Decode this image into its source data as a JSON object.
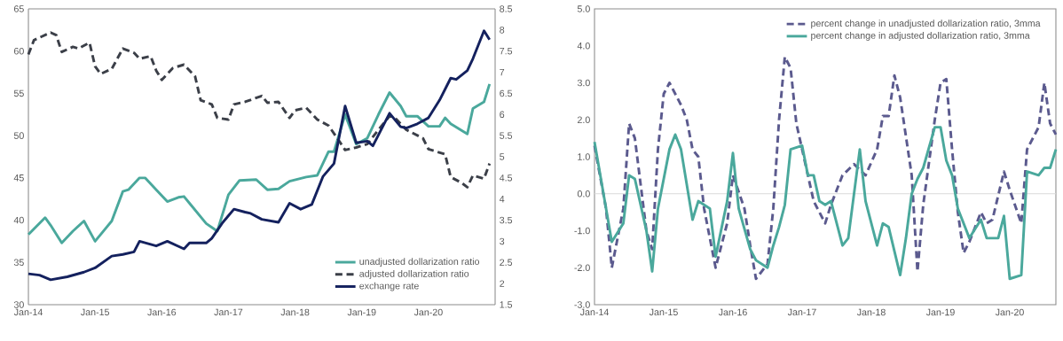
{
  "chart_data": [
    {
      "type": "line",
      "xlim": [
        "2014-01",
        "2021-01"
      ],
      "ylim": [
        30,
        65
      ],
      "yticks": [
        30,
        35,
        40,
        45,
        50,
        55,
        60,
        65
      ],
      "y2lim": [
        1.5,
        8.5
      ],
      "y2ticks": [
        1.5,
        2,
        2.5,
        3,
        3.5,
        4,
        4.5,
        5,
        5.5,
        6,
        6.5,
        7,
        7.5,
        8,
        8.5
      ],
      "legend": "bottom right",
      "xticks": [
        {
          "value": "2014-01",
          "label": "Jan-14"
        },
        {
          "value": "2015-01",
          "label": "Jan-15"
        },
        {
          "value": "2016-01",
          "label": "Jan-16"
        },
        {
          "value": "2017-01",
          "label": "Jan-17"
        },
        {
          "value": "2018-01",
          "label": "Jan-18"
        },
        {
          "value": "2019-01",
          "label": "Jan-19"
        },
        {
          "value": "2020-01",
          "label": "Jan-20"
        }
      ],
      "series": [
        {
          "name": "unadjusted dollarization ratio",
          "color": "#4aa89c",
          "line_style": "solid",
          "x": [
            "2014-01",
            "2014-04",
            "2014-05",
            "2014-07",
            "2014-09",
            "2014-11",
            "2015-01",
            "2015-04",
            "2015-06",
            "2015-07",
            "2015-09",
            "2015-10",
            "2015-12",
            "2016-02",
            "2016-04",
            "2016-05",
            "2016-06",
            "2016-09",
            "2016-11",
            "2017-01",
            "2017-03",
            "2017-06",
            "2017-08",
            "2017-10",
            "2017-12",
            "2018-03",
            "2018-05",
            "2018-07",
            "2018-08",
            "2018-10",
            "2018-12",
            "2019-02",
            "2019-04",
            "2019-06",
            "2019-08",
            "2019-09",
            "2019-11",
            "2020-01",
            "2020-03",
            "2020-04",
            "2020-05",
            "2020-08",
            "2020-09",
            "2020-11",
            "2020-12"
          ],
          "values": [
            38.3,
            40.3,
            39.4,
            37.3,
            38.7,
            39.9,
            37.5,
            39.9,
            43.4,
            43.6,
            45.0,
            45.0,
            43.6,
            42.2,
            42.7,
            42.8,
            42.0,
            39.6,
            38.7,
            43.0,
            44.7,
            44.8,
            43.6,
            43.7,
            44.6,
            45.1,
            45.3,
            48.1,
            48.1,
            52.5,
            49.0,
            49.7,
            52.5,
            55.1,
            53.5,
            52.3,
            52.3,
            51.1,
            51.1,
            52.1,
            51.4,
            50.2,
            53.2,
            54.0,
            56.1
          ]
        },
        {
          "name": "adjusted dollarization ratio",
          "color": "#3b3f48",
          "line_style": "dashed",
          "x": [
            "2014-01",
            "2014-02",
            "2014-05",
            "2014-06",
            "2014-07",
            "2014-09",
            "2014-10",
            "2014-12",
            "2015-01",
            "2015-02",
            "2015-04",
            "2015-06",
            "2015-08",
            "2015-09",
            "2015-11",
            "2015-12",
            "2016-01",
            "2016-03",
            "2016-05",
            "2016-07",
            "2016-08",
            "2016-10",
            "2016-11",
            "2017-01",
            "2017-02",
            "2017-04",
            "2017-07",
            "2017-08",
            "2017-10",
            "2017-12",
            "2018-01",
            "2018-03",
            "2018-05",
            "2018-07",
            "2018-09",
            "2018-10",
            "2018-12",
            "2019-02",
            "2019-04",
            "2019-06",
            "2019-07",
            "2019-09",
            "2019-12",
            "2020-01",
            "2020-04",
            "2020-05",
            "2020-07",
            "2020-08",
            "2020-09",
            "2020-11",
            "2020-12"
          ],
          "values": [
            59.6,
            61.3,
            62.2,
            61.9,
            59.9,
            60.5,
            60.3,
            61.0,
            58.2,
            57.3,
            57.9,
            60.3,
            59.8,
            59.1,
            59.4,
            57.7,
            56.6,
            58.0,
            58.4,
            57.0,
            54.2,
            53.7,
            52.1,
            51.9,
            53.7,
            54.0,
            54.7,
            53.9,
            54.0,
            52.1,
            53.0,
            53.3,
            51.9,
            51.2,
            49.3,
            48.3,
            48.6,
            49.0,
            50.7,
            52.3,
            52.1,
            50.7,
            49.7,
            48.4,
            47.8,
            45.1,
            44.4,
            43.9,
            45.3,
            44.9,
            46.7
          ]
        },
        {
          "name": "exchange rate",
          "color": "#14215e",
          "line_style": "solid",
          "axis": "y2",
          "x": [
            "2014-01",
            "2014-03",
            "2014-05",
            "2014-08",
            "2014-11",
            "2015-01",
            "2015-04",
            "2015-06",
            "2015-08",
            "2015-09",
            "2015-12",
            "2016-02",
            "2016-05",
            "2016-06",
            "2016-09",
            "2016-10",
            "2016-12",
            "2017-02",
            "2017-04",
            "2017-05",
            "2017-07",
            "2017-10",
            "2017-12",
            "2018-02",
            "2018-04",
            "2018-06",
            "2018-08",
            "2018-10",
            "2018-12",
            "2019-02",
            "2019-03",
            "2019-06",
            "2019-08",
            "2019-09",
            "2019-11",
            "2020-01",
            "2020-03",
            "2020-05",
            "2020-06",
            "2020-08",
            "2020-09",
            "2020-11",
            "2020-12"
          ],
          "values": [
            2.23,
            2.2,
            2.09,
            2.16,
            2.27,
            2.37,
            2.65,
            2.69,
            2.75,
            3.0,
            2.89,
            3.0,
            2.82,
            2.96,
            2.96,
            3.07,
            3.45,
            3.76,
            3.69,
            3.66,
            3.52,
            3.45,
            3.9,
            3.76,
            3.87,
            4.53,
            4.84,
            6.2,
            5.33,
            5.37,
            5.26,
            6.03,
            5.71,
            5.68,
            5.78,
            5.92,
            6.34,
            6.86,
            6.83,
            7.04,
            7.32,
            7.98,
            7.77
          ]
        }
      ]
    },
    {
      "type": "line",
      "xlim": [
        "2014-01",
        "2020-09"
      ],
      "ylim": [
        -3,
        5
      ],
      "legend": "top right",
      "yticks": [
        {
          "value": -3,
          "label": "-3.0"
        },
        {
          "value": -2,
          "label": "-2.0"
        },
        {
          "value": -1,
          "label": "-1.0"
        },
        {
          "value": 0,
          "label": "0.0"
        },
        {
          "value": 1,
          "label": "1.0"
        },
        {
          "value": 2,
          "label": "2.0"
        },
        {
          "value": 3,
          "label": "3.0"
        },
        {
          "value": 4,
          "label": "4.0"
        },
        {
          "value": 5,
          "label": "5.0"
        }
      ],
      "xticks": [
        {
          "value": "2014-01",
          "label": "Jan-14"
        },
        {
          "value": "2015-01",
          "label": "Jan-15"
        },
        {
          "value": "2016-01",
          "label": "Jan-16"
        },
        {
          "value": "2017-01",
          "label": "Jan-17"
        },
        {
          "value": "2018-01",
          "label": "Jan-18"
        },
        {
          "value": "2019-01",
          "label": "Jan-19"
        },
        {
          "value": "2020-01",
          "label": "Jan-20"
        }
      ],
      "ref_lines": [
        {
          "axis": "y",
          "value": 0,
          "color": "#d9d9d9"
        }
      ],
      "series": [
        {
          "name": "percent change in unadjusted dollarization ratio, 3mma",
          "color": "#5b5a8e",
          "line_style": "dashed",
          "x": [
            "2014-01",
            "2014-03",
            "2014-04",
            "2014-06",
            "2014-07",
            "2014-08",
            "2014-10",
            "2014-11",
            "2014-12",
            "2015-01",
            "2015-02",
            "2015-04",
            "2015-05",
            "2015-06",
            "2015-07",
            "2015-08",
            "2015-10",
            "2015-12",
            "2016-01",
            "2016-03",
            "2016-04",
            "2016-05",
            "2016-07",
            "2016-08",
            "2016-09",
            "2016-10",
            "2016-11",
            "2016-12",
            "2017-02",
            "2017-03",
            "2017-05",
            "2017-06",
            "2017-08",
            "2017-10",
            "2017-12",
            "2018-02",
            "2018-03",
            "2018-04",
            "2018-05",
            "2018-06",
            "2018-08",
            "2018-09",
            "2018-10",
            "2018-12",
            "2019-01",
            "2019-02",
            "2019-03",
            "2019-04",
            "2019-05",
            "2019-06",
            "2019-08",
            "2019-09",
            "2019-10",
            "2019-12",
            "2020-01",
            "2020-03",
            "2020-04",
            "2020-06",
            "2020-07",
            "2020-08",
            "2020-09"
          ],
          "values": [
            1.3,
            -0.4,
            -2.0,
            -0.4,
            1.9,
            1.5,
            -1.0,
            -1.5,
            1.2,
            2.7,
            3.0,
            2.4,
            2.0,
            1.2,
            1.0,
            -0.4,
            -2.0,
            -0.8,
            0.5,
            -0.4,
            -1.4,
            -2.3,
            -1.9,
            -0.4,
            2.0,
            3.7,
            3.4,
            1.9,
            0.5,
            -0.2,
            -0.8,
            -0.3,
            0.5,
            0.8,
            0.5,
            1.2,
            2.1,
            2.1,
            3.2,
            2.6,
            0.5,
            -2.1,
            -0.3,
            2.0,
            3.0,
            3.1,
            1.2,
            -0.5,
            -1.6,
            -1.3,
            -0.5,
            -0.8,
            -0.7,
            0.6,
            0.1,
            -0.8,
            1.2,
            1.8,
            3.0,
            1.9,
            1.6
          ]
        },
        {
          "name": "percent change in adjusted dollarization ratio, 3mma",
          "color": "#4aa89c",
          "line_style": "solid",
          "x": [
            "2014-01",
            "2014-02",
            "2014-04",
            "2014-06",
            "2014-07",
            "2014-08",
            "2014-10",
            "2014-11",
            "2014-12",
            "2015-02",
            "2015-03",
            "2015-04",
            "2015-06",
            "2015-07",
            "2015-08",
            "2015-09",
            "2015-10",
            "2015-12",
            "2016-01",
            "2016-02",
            "2016-04",
            "2016-05",
            "2016-07",
            "2016-08",
            "2016-09",
            "2016-10",
            "2016-11",
            "2017-01",
            "2017-02",
            "2017-03",
            "2017-04",
            "2017-05",
            "2017-06",
            "2017-08",
            "2017-09",
            "2017-11",
            "2017-12",
            "2018-02",
            "2018-03",
            "2018-04",
            "2018-06",
            "2018-07",
            "2018-08",
            "2018-09",
            "2018-10",
            "2018-12",
            "2019-01",
            "2019-02",
            "2019-03",
            "2019-04",
            "2019-06",
            "2019-08",
            "2019-09",
            "2019-11",
            "2019-12",
            "2020-01",
            "2020-03",
            "2020-04",
            "2020-06",
            "2020-07",
            "2020-08",
            "2020-09"
          ],
          "values": [
            1.4,
            0.5,
            -1.3,
            -0.8,
            0.5,
            0.4,
            -1.0,
            -2.1,
            -0.4,
            1.2,
            1.6,
            1.2,
            -0.7,
            -0.2,
            -0.3,
            -0.4,
            -1.7,
            -0.2,
            1.1,
            -0.4,
            -1.5,
            -1.8,
            -2.0,
            -1.4,
            -0.9,
            -0.3,
            1.2,
            1.3,
            0.5,
            0.5,
            -0.2,
            -0.3,
            -0.2,
            -1.4,
            -1.2,
            1.2,
            -0.2,
            -1.4,
            -0.8,
            -0.9,
            -2.2,
            -1.2,
            0.0,
            0.4,
            0.7,
            1.8,
            1.8,
            0.9,
            0.5,
            -0.4,
            -1.2,
            -0.7,
            -1.2,
            -1.2,
            -0.6,
            -2.3,
            -2.2,
            0.6,
            0.5,
            0.7,
            0.7,
            1.2
          ]
        }
      ]
    }
  ]
}
